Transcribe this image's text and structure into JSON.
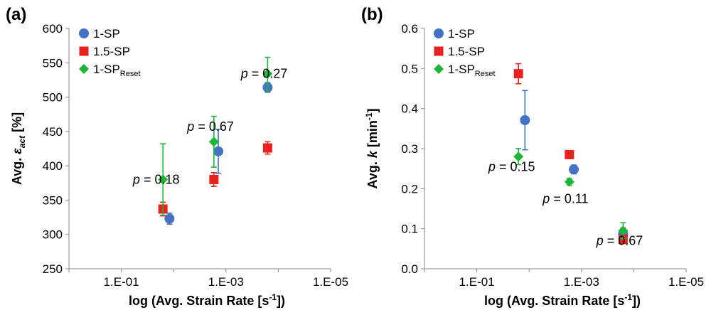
{
  "chart_data": [
    {
      "panel": "(a)",
      "type": "scatter",
      "xscale": "log",
      "xlim": [
        1,
        1e-05
      ],
      "xticks": [
        "1.E-01",
        "1.E-03",
        "1.E-05"
      ],
      "ylim": [
        250,
        600
      ],
      "yticks": [
        "250",
        "300",
        "350",
        "400",
        "450",
        "500",
        "550",
        "600"
      ],
      "xlabel": "log (Avg. Strain Rate [s⁻¹])",
      "ylabel": "Avg. εact [%]",
      "ylabel_parts": {
        "pre": "Avg. ",
        "sym": "ε",
        "sub": "act",
        "post": " [%]"
      },
      "legend_position": "top-left",
      "series": [
        {
          "name": "1-SP",
          "name_main": "1-SP",
          "name_sub": "",
          "marker": "circle",
          "color": "#4472C4",
          "x": [
            0.012,
            0.0014,
            0.00016
          ],
          "y": [
            323,
            421,
            514
          ],
          "err": [
            8,
            32,
            7
          ]
        },
        {
          "name": "1.5-SP",
          "name_main": "1.5-SP",
          "name_sub": "",
          "marker": "square",
          "color": "#E8231F",
          "x": [
            0.016,
            0.0017,
            0.00016
          ],
          "y": [
            337,
            380,
            426
          ],
          "err": [
            10,
            10,
            9
          ]
        },
        {
          "name": "1-SPReset",
          "name_main": "1-SP",
          "name_sub": "Reset",
          "marker": "diamond",
          "color": "#1DB536",
          "x": [
            0.016,
            0.0017,
            0.00016
          ],
          "y": [
            380,
            435,
            534
          ],
          "err": [
            52,
            37,
            24
          ]
        }
      ],
      "annotations": [
        {
          "p": "p",
          "text": " = 0.18",
          "x": 0.06,
          "y": 380
        },
        {
          "p": "p",
          "text": " = 0.67",
          "x": 0.0055,
          "y": 457
        },
        {
          "p": "p",
          "text": " = 0.27",
          "x": 0.00052,
          "y": 534
        }
      ]
    },
    {
      "panel": "(b)",
      "type": "scatter",
      "xscale": "log",
      "xlim": [
        1,
        1e-05
      ],
      "xticks": [
        "1.E-01",
        "1.E-03",
        "1.E-05"
      ],
      "ylim": [
        0,
        0.6
      ],
      "yticks": [
        "0.0",
        "0.1",
        "0.2",
        "0.3",
        "0.4",
        "0.5",
        "0.6"
      ],
      "xlabel": "log (Avg. Strain Rate [s⁻¹])",
      "ylabel": "Avg. k [min⁻¹]",
      "ylabel_parts": {
        "pre": "Avg. ",
        "sym": "k",
        "sub": "",
        "post": " [min⁻¹]"
      },
      "legend_position": "top-left",
      "series": [
        {
          "name": "1-SP",
          "name_main": "1-SP",
          "name_sub": "",
          "marker": "circle",
          "color": "#4472C4",
          "x": [
            0.012,
            0.0014,
            0.00016
          ],
          "y": [
            0.371,
            0.248,
            0.087
          ],
          "err": [
            0.074,
            0.011,
            0.015
          ]
        },
        {
          "name": "1.5-SP",
          "name_main": "1.5-SP",
          "name_sub": "",
          "marker": "square",
          "color": "#E8231F",
          "x": [
            0.016,
            0.0017,
            0.00016
          ],
          "y": [
            0.487,
            0.285,
            0.073
          ],
          "err": [
            0.025,
            0.0,
            0.005
          ]
        },
        {
          "name": "1-SPReset",
          "name_main": "1-SP",
          "name_sub": "Reset",
          "marker": "diamond",
          "color": "#1DB536",
          "x": [
            0.016,
            0.0017,
            0.00016
          ],
          "y": [
            0.28,
            0.217,
            0.095
          ],
          "err": [
            0.02,
            0.008,
            0.02
          ]
        }
      ],
      "annotations": [
        {
          "p": "p",
          "text": " = 0.15",
          "x": 0.06,
          "y": 0.255
        },
        {
          "p": "p",
          "text": " = 0.11",
          "x": 0.0055,
          "y": 0.175
        },
        {
          "p": "p",
          "text": " = 0.67",
          "x": 0.00052,
          "y": 0.07
        }
      ]
    }
  ]
}
